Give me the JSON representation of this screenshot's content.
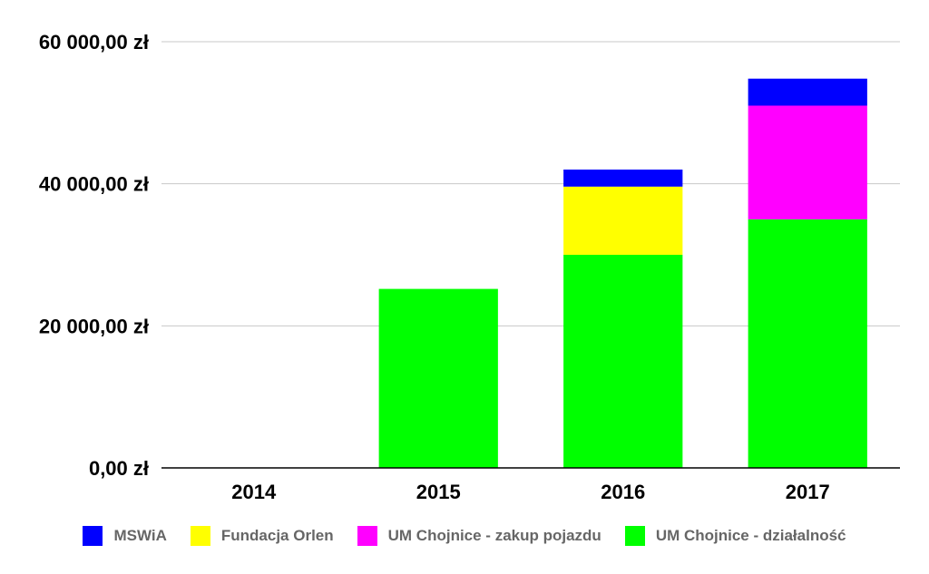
{
  "chart_data": {
    "type": "bar",
    "stacked": true,
    "categories": [
      "2014",
      "2015",
      "2016",
      "2017"
    ],
    "series": [
      {
        "name": "UM Chojnice - działalność",
        "color": "#00ff00",
        "values": [
          0,
          25200,
          30000,
          35000
        ]
      },
      {
        "name": "UM Chojnice - zakup pojazdu",
        "color": "#ff00ff",
        "values": [
          0,
          0,
          0,
          16000
        ]
      },
      {
        "name": "Fundacja Orlen",
        "color": "#ffff00",
        "values": [
          0,
          0,
          9600,
          0
        ]
      },
      {
        "name": "MSWiA",
        "color": "#0000ff",
        "values": [
          0,
          0,
          2400,
          3800
        ]
      }
    ],
    "legend_order": [
      "MSWiA",
      "Fundacja Orlen",
      "UM Chojnice - zakup pojazdu",
      "UM Chojnice - działalność"
    ],
    "y_ticks": [
      {
        "value": 0,
        "label": "0,00 zł"
      },
      {
        "value": 20000,
        "label": "20 000,00 zł"
      },
      {
        "value": 40000,
        "label": "40 000,00 zł"
      },
      {
        "value": 60000,
        "label": "60 000,00 zł"
      }
    ],
    "ylim": [
      0,
      60000
    ],
    "grid": true,
    "legend_position": "bottom"
  }
}
